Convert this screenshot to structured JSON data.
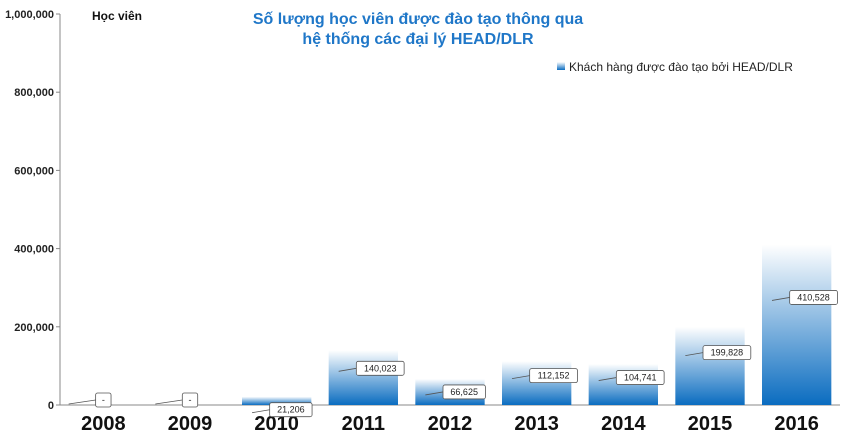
{
  "chart_data": {
    "type": "bar",
    "title_lines": [
      "Số lượng học viên được đào tạo thông qua",
      "hệ thống các đại lý HEAD/DLR"
    ],
    "ylabel": "Học viên",
    "xlabel": "",
    "categories": [
      "2008",
      "2009",
      "2010",
      "2011",
      "2012",
      "2013",
      "2014",
      "2015",
      "2016"
    ],
    "series": [
      {
        "name": "Khách hàng được đào tạo bởi HEAD/DLR",
        "values": [
          0,
          0,
          21206,
          140023,
          66625,
          112152,
          104741,
          199828,
          410528
        ],
        "labels": [
          "-",
          "-",
          "21,206",
          "140,023",
          "66,625",
          "112,152",
          "104,741",
          "199,828",
          "410,528"
        ]
      }
    ],
    "ylim": [
      0,
      1000000
    ],
    "yticks": [
      0,
      200000,
      400000,
      600000,
      800000,
      1000000
    ],
    "ytick_labels": [
      "0",
      "200,000",
      "400,000",
      "600,000",
      "800,000",
      "1,000,000"
    ],
    "legend_position": "top-right",
    "grid": false,
    "colors": {
      "bar_dark": "#0a6cc0",
      "bar_light": "#ffffff",
      "title": "#1f77c8",
      "axis": "#888888"
    }
  }
}
